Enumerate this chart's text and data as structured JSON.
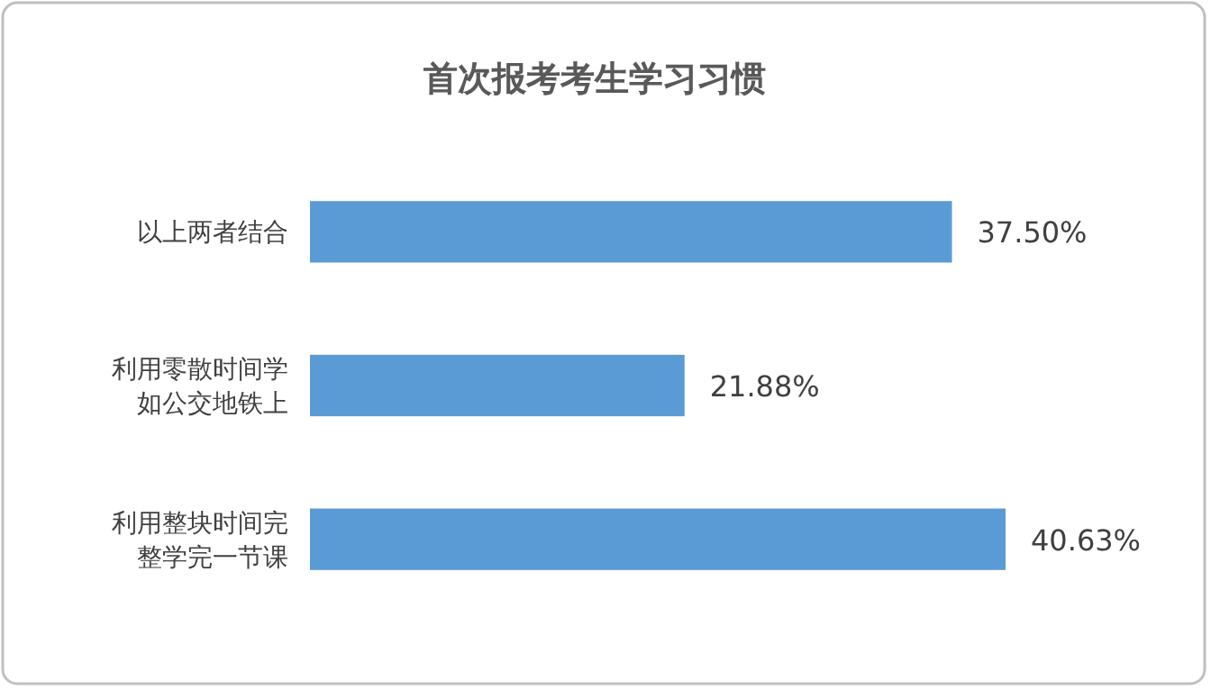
{
  "chart_data": {
    "type": "bar",
    "orientation": "horizontal",
    "title": "首次报考考生学习习惯",
    "categories": [
      "以上两者结合",
      "利用零散时间学如公交地铁上",
      "利用整块时间完整学完一节课"
    ],
    "values": [
      37.5,
      21.88,
      40.63
    ],
    "value_labels": [
      "37.50%",
      "21.88%",
      "40.63%"
    ],
    "color": "#5b9bd5"
  }
}
